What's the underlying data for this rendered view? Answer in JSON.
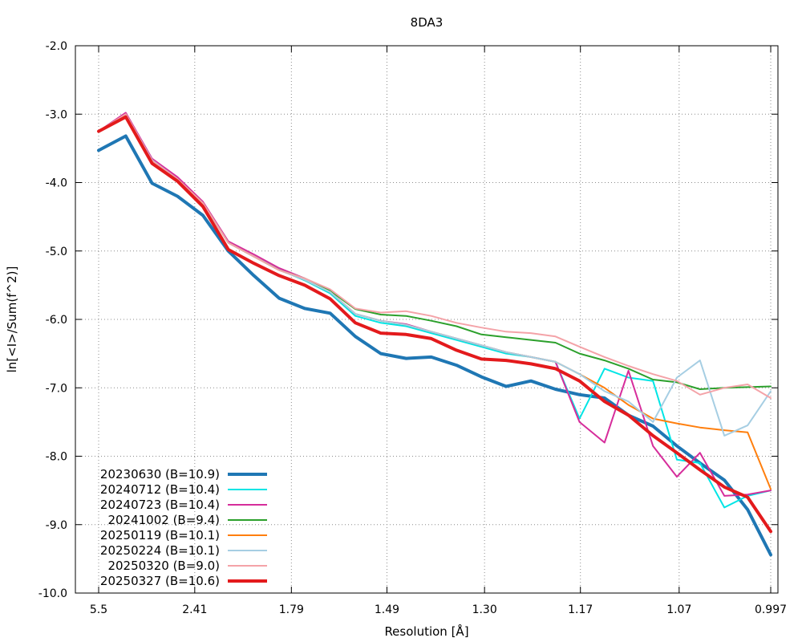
{
  "chart_data": {
    "type": "line",
    "title": "8DA3",
    "xlabel": "Resolution [Å]",
    "ylabel": "ln[<I>/Sum(f^2)]",
    "xscale": "1/d^2",
    "xlim": [
      5.5,
      0.997
    ],
    "ylim": [
      -10.0,
      -2.0
    ],
    "x_ticks": [
      "5.5",
      "2.41",
      "1.79",
      "1.49",
      "1.30",
      "1.17",
      "1.07",
      "0.997"
    ],
    "y_ticks": [
      "-2.0",
      "-3.0",
      "-4.0",
      "-5.0",
      "-6.0",
      "-7.0",
      "-8.0",
      "-9.0",
      "-10.0"
    ],
    "grid": true,
    "legend_position": "bottom-left",
    "colors": {
      "background": "#ffffff",
      "frame": "#000000",
      "grid": "#8c8c8c"
    },
    "series": [
      {
        "name": "20230630 (B=10.9)",
        "color": "#1f77b4",
        "width": 4,
        "x": [
          5.5,
          3.72,
          3.01,
          2.605,
          2.331,
          2.128,
          1.97,
          1.843,
          1.737,
          1.648,
          1.572,
          1.505,
          1.446,
          1.394,
          1.347,
          1.305,
          1.267,
          1.232,
          1.2,
          1.171,
          1.143,
          1.118,
          1.094,
          1.072,
          1.052,
          1.032,
          1.014,
          0.997
        ],
        "y": [
          -3.53,
          -3.32,
          -4.01,
          -4.2,
          -4.48,
          -5.0,
          -5.36,
          -5.69,
          -5.84,
          -5.91,
          -6.25,
          -6.5,
          -6.57,
          -6.55,
          -6.67,
          -6.84,
          -6.98,
          -6.9,
          -7.02,
          -7.1,
          -7.15,
          -7.4,
          -7.56,
          -7.85,
          -8.1,
          -8.35,
          -8.78,
          -9.44
        ]
      },
      {
        "name": "20240712 (B=10.4)",
        "color": "#00e5e5",
        "width": 2,
        "x": [
          5.5,
          3.72,
          3.01,
          2.605,
          2.331,
          2.128,
          1.97,
          1.843,
          1.737,
          1.648,
          1.572,
          1.505,
          1.446,
          1.394,
          1.347,
          1.305,
          1.267,
          1.232,
          1.2,
          1.171,
          1.143,
          1.118,
          1.094,
          1.072,
          1.052,
          1.032,
          1.014,
          0.997
        ],
        "y": [
          -3.25,
          -3.0,
          -3.67,
          -3.95,
          -4.3,
          -4.88,
          -5.08,
          -5.27,
          -5.43,
          -5.62,
          -5.95,
          -6.05,
          -6.1,
          -6.2,
          -6.3,
          -6.4,
          -6.5,
          -6.55,
          -6.62,
          -7.45,
          -6.72,
          -6.85,
          -6.9,
          -8.05,
          -8.1,
          -8.75,
          -8.58,
          -8.5
        ]
      },
      {
        "name": "20240723 (B=10.4)",
        "color": "#d62d9b",
        "width": 2,
        "x": [
          5.5,
          3.72,
          3.01,
          2.605,
          2.331,
          2.128,
          1.97,
          1.843,
          1.737,
          1.648,
          1.572,
          1.505,
          1.446,
          1.394,
          1.347,
          1.305,
          1.267,
          1.232,
          1.2,
          1.171,
          1.143,
          1.118,
          1.094,
          1.072,
          1.052,
          1.032,
          1.014,
          0.997
        ],
        "y": [
          -3.25,
          -2.98,
          -3.65,
          -3.92,
          -4.28,
          -4.86,
          -5.05,
          -5.25,
          -5.4,
          -5.6,
          -5.92,
          -6.02,
          -6.07,
          -6.18,
          -6.28,
          -6.38,
          -6.48,
          -6.55,
          -6.62,
          -7.5,
          -7.8,
          -6.75,
          -7.85,
          -8.3,
          -7.95,
          -8.58,
          -8.56,
          -8.5
        ]
      },
      {
        "name": "20241002 (B=9.4)",
        "color": "#2ca02c",
        "width": 2,
        "x": [
          5.5,
          3.72,
          3.01,
          2.605,
          2.331,
          2.128,
          1.97,
          1.843,
          1.737,
          1.648,
          1.572,
          1.505,
          1.446,
          1.394,
          1.347,
          1.305,
          1.267,
          1.232,
          1.2,
          1.171,
          1.143,
          1.118,
          1.094,
          1.072,
          1.052,
          1.032,
          1.014,
          0.997
        ],
        "y": [
          -3.25,
          -3.02,
          -3.68,
          -3.95,
          -4.3,
          -4.88,
          -5.08,
          -5.28,
          -5.4,
          -5.58,
          -5.85,
          -5.93,
          -5.95,
          -6.02,
          -6.1,
          -6.22,
          -6.26,
          -6.3,
          -6.34,
          -6.5,
          -6.6,
          -6.72,
          -6.88,
          -6.92,
          -7.02,
          -7.0,
          -6.99,
          -6.98
        ]
      },
      {
        "name": "20250119 (B=10.1)",
        "color": "#ff7f0e",
        "width": 2,
        "x": [
          5.5,
          3.72,
          3.01,
          2.605,
          2.331,
          2.128,
          1.97,
          1.843,
          1.737,
          1.648,
          1.572,
          1.505,
          1.446,
          1.394,
          1.347,
          1.305,
          1.267,
          1.232,
          1.2,
          1.171,
          1.143,
          1.118,
          1.094,
          1.072,
          1.052,
          1.032,
          1.014,
          0.997
        ],
        "y": [
          -3.25,
          -3.0,
          -3.68,
          -3.95,
          -4.3,
          -4.88,
          -5.08,
          -5.28,
          -5.42,
          -5.6,
          -5.92,
          -6.02,
          -6.08,
          -6.18,
          -6.28,
          -6.38,
          -6.48,
          -6.55,
          -6.62,
          -6.8,
          -7.0,
          -7.25,
          -7.45,
          -7.52,
          -7.58,
          -7.62,
          -7.65,
          -8.48
        ]
      },
      {
        "name": "20250224 (B=10.1)",
        "color": "#a6cee3",
        "width": 2,
        "x": [
          5.5,
          3.72,
          3.01,
          2.605,
          2.331,
          2.128,
          1.97,
          1.843,
          1.737,
          1.648,
          1.572,
          1.505,
          1.446,
          1.394,
          1.347,
          1.305,
          1.267,
          1.232,
          1.2,
          1.171,
          1.143,
          1.118,
          1.094,
          1.072,
          1.052,
          1.032,
          1.014,
          0.997
        ],
        "y": [
          -3.25,
          -3.0,
          -3.67,
          -3.95,
          -4.3,
          -4.88,
          -5.08,
          -5.28,
          -5.42,
          -5.6,
          -5.92,
          -6.02,
          -6.08,
          -6.18,
          -6.28,
          -6.38,
          -6.48,
          -6.55,
          -6.62,
          -6.8,
          -7.05,
          -7.2,
          -7.5,
          -6.85,
          -6.6,
          -7.7,
          -7.55,
          -7.05
        ]
      },
      {
        "name": "20250320 (B=9.0)",
        "color": "#f4a3a8",
        "width": 2,
        "x": [
          5.5,
          3.72,
          3.01,
          2.605,
          2.331,
          2.128,
          1.97,
          1.843,
          1.737,
          1.648,
          1.572,
          1.505,
          1.446,
          1.394,
          1.347,
          1.305,
          1.267,
          1.232,
          1.2,
          1.171,
          1.143,
          1.118,
          1.094,
          1.072,
          1.052,
          1.032,
          1.014,
          0.997
        ],
        "y": [
          -3.25,
          -3.0,
          -3.68,
          -3.95,
          -4.3,
          -4.88,
          -5.08,
          -5.28,
          -5.4,
          -5.56,
          -5.84,
          -5.9,
          -5.88,
          -5.95,
          -6.05,
          -6.12,
          -6.18,
          -6.2,
          -6.25,
          -6.4,
          -6.55,
          -6.68,
          -6.8,
          -6.9,
          -7.1,
          -7.0,
          -6.95,
          -7.15
        ]
      },
      {
        "name": "20250327 (B=10.6)",
        "color": "#e31a1c",
        "width": 4,
        "x": [
          5.5,
          3.72,
          3.01,
          2.605,
          2.331,
          2.128,
          1.97,
          1.843,
          1.737,
          1.648,
          1.572,
          1.505,
          1.446,
          1.394,
          1.347,
          1.305,
          1.267,
          1.232,
          1.2,
          1.171,
          1.143,
          1.118,
          1.094,
          1.072,
          1.052,
          1.032,
          1.014,
          0.997
        ],
        "y": [
          -3.25,
          -3.04,
          -3.72,
          -3.98,
          -4.35,
          -4.98,
          -5.18,
          -5.36,
          -5.5,
          -5.7,
          -6.05,
          -6.2,
          -6.22,
          -6.28,
          -6.45,
          -6.58,
          -6.6,
          -6.65,
          -6.72,
          -6.9,
          -7.2,
          -7.4,
          -7.7,
          -7.95,
          -8.2,
          -8.45,
          -8.6,
          -9.1
        ]
      }
    ]
  }
}
